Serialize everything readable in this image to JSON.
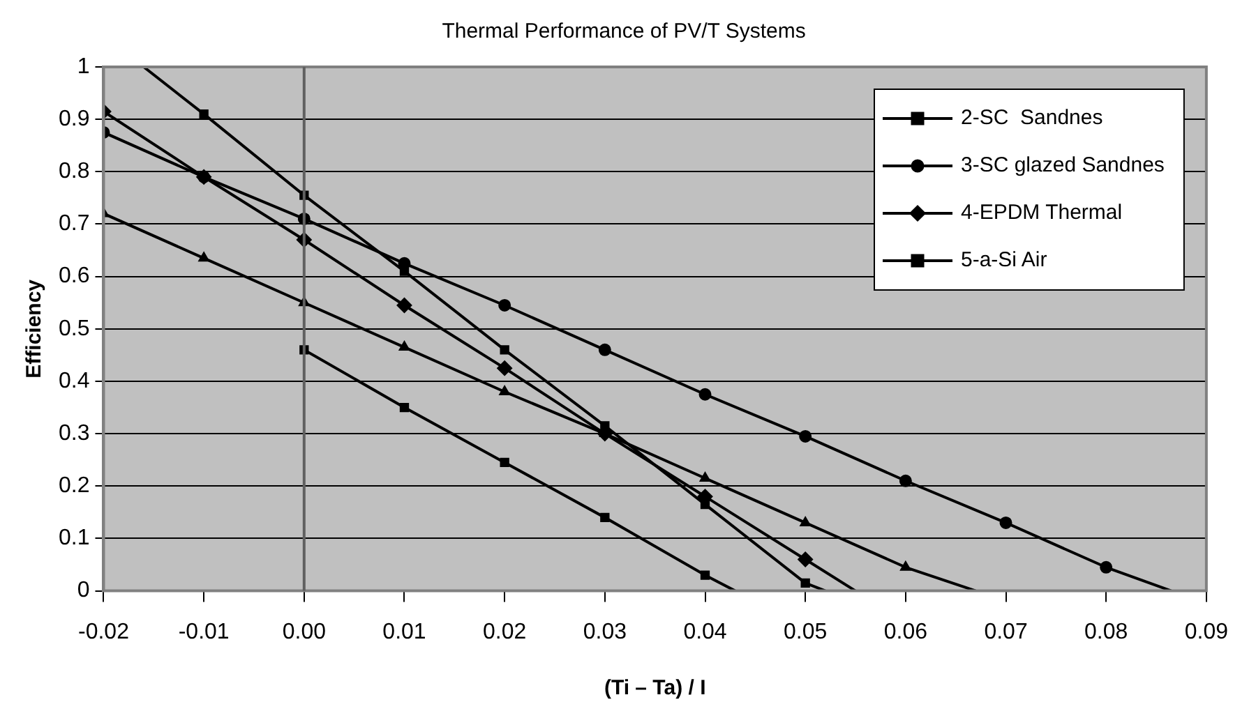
{
  "chart_data": {
    "type": "line",
    "title": "Thermal Performance of PV/T Systems",
    "xlabel": "(Ti – Ta) / I",
    "ylabel": "Efficiency",
    "xlim": [
      -0.02,
      0.09
    ],
    "xticks": [
      {
        "value": -0.02,
        "label": "-0.02"
      },
      {
        "value": -0.01,
        "label": "-0.01"
      },
      {
        "value": 0,
        "label": "0.00"
      },
      {
        "value": 0.01,
        "label": "0.01"
      },
      {
        "value": 0.02,
        "label": "0.02"
      },
      {
        "value": 0.03,
        "label": "0.03"
      },
      {
        "value": 0.04,
        "label": "0.04"
      },
      {
        "value": 0.05,
        "label": "0.05"
      },
      {
        "value": 0.06,
        "label": "0.06"
      },
      {
        "value": 0.07,
        "label": "0.07"
      },
      {
        "value": 0.08,
        "label": "0.08"
      },
      {
        "value": 0.09,
        "label": "0.09"
      }
    ],
    "ylim": [
      0,
      1
    ],
    "yticks": [
      0,
      0.1,
      0.2,
      0.3,
      0.4,
      0.5,
      0.6,
      0.7,
      0.8,
      0.9,
      1
    ],
    "grid": "y",
    "legend": "top right",
    "line_style": "solid",
    "ref_lines": [
      {
        "axis": "x",
        "value": 0,
        "color": "#606060"
      }
    ],
    "series": [
      {
        "color": "#000000",
        "marker": "triangle",
        "x": [
          -0.02,
          -0.01,
          0,
          0.01,
          0.02,
          0.03,
          0.04,
          0.05,
          0.06
        ],
        "values": [
          0.72,
          0.635,
          0.55,
          0.465,
          0.38,
          0.3,
          0.215,
          0.13,
          0.045
        ]
      },
      {
        "name": "2-SC  Sandnes",
        "color": "#000000",
        "marker": "square",
        "x": [
          -0.01,
          0,
          0.01,
          0.02,
          0.03,
          0.04,
          0.05
        ],
        "values": [
          0.91,
          0.755,
          0.61,
          0.46,
          0.315,
          0.165,
          0.015
        ]
      },
      {
        "name": "3-SC glazed Sandnes",
        "color": "#000000",
        "marker": "circle",
        "x": [
          -0.02,
          -0.01,
          0,
          0.01,
          0.02,
          0.03,
          0.04,
          0.05,
          0.06,
          0.07,
          0.08
        ],
        "values": [
          0.875,
          0.79,
          0.71,
          0.625,
          0.545,
          0.46,
          0.375,
          0.295,
          0.21,
          0.13,
          0.045
        ]
      },
      {
        "name": "4-EPDM Thermal",
        "color": "#000000",
        "marker": "diamond",
        "x": [
          -0.02,
          -0.01,
          0,
          0.01,
          0.02,
          0.03,
          0.04,
          0.05
        ],
        "values": [
          0.915,
          0.79,
          0.67,
          0.545,
          0.425,
          0.3,
          0.18,
          0.06
        ]
      },
      {
        "name": "5-a-Si Air",
        "color": "#000000",
        "marker": "square",
        "x": [
          0,
          0.01,
          0.02,
          0.03,
          0.04
        ],
        "values": [
          0.46,
          0.35,
          0.245,
          0.14,
          0.03
        ]
      },
      {
        "type": "line",
        "color": "#000000",
        "marker": "none",
        "x": [
          0.06,
          0.067
        ],
        "values": [
          0.045,
          0
        ]
      },
      {
        "type": "line",
        "color": "#000000",
        "marker": "none",
        "x": [
          -0.016,
          -0.01
        ],
        "values": [
          1,
          0.91
        ]
      },
      {
        "type": "line",
        "color": "#000000",
        "marker": "none",
        "x": [
          0.05,
          0.052
        ],
        "values": [
          0.015,
          0
        ]
      },
      {
        "type": "line",
        "color": "#000000",
        "marker": "none",
        "x": [
          0.08,
          0.0865
        ],
        "values": [
          0.045,
          0
        ]
      },
      {
        "type": "line",
        "color": "#000000",
        "marker": "none",
        "x": [
          0.05,
          0.055
        ],
        "values": [
          0.06,
          0
        ]
      },
      {
        "type": "line",
        "color": "#000000",
        "marker": "none",
        "x": [
          0.04,
          0.043
        ],
        "values": [
          0.03,
          0
        ]
      }
    ]
  }
}
